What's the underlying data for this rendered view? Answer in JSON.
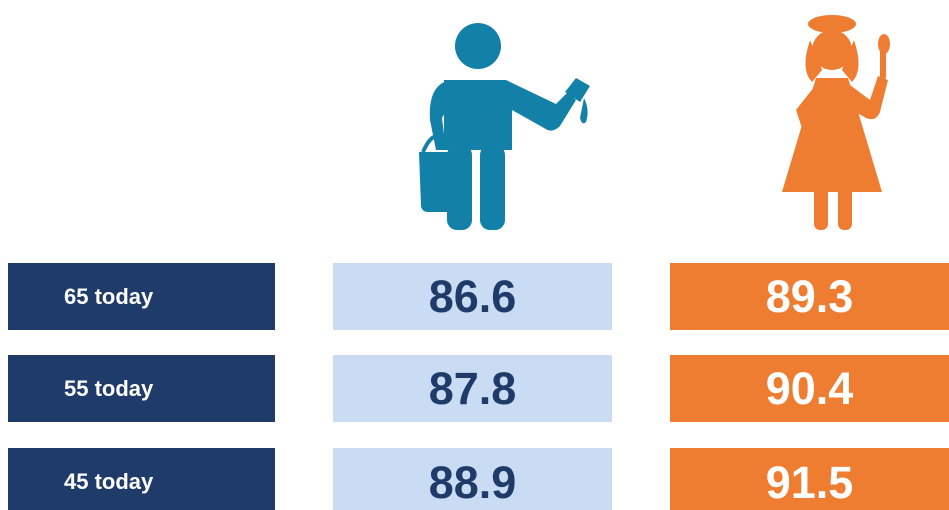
{
  "table": {
    "rows": [
      [
        "65 today",
        "86.6",
        "89.3"
      ],
      [
        "55 today",
        "87.8",
        "90.4"
      ],
      [
        "45 today",
        "88.9",
        "91.5"
      ]
    ]
  }
}
